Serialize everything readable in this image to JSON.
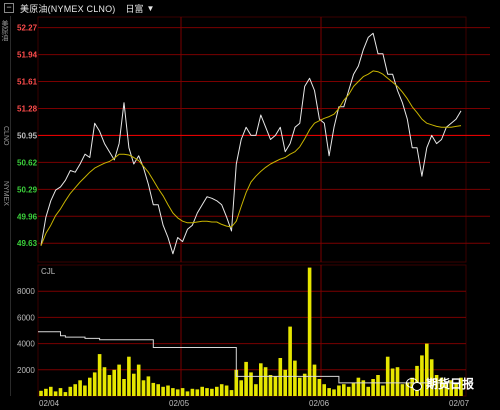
{
  "header": {
    "minus_label": "−",
    "title": "美原油(NYMEX CLNO)",
    "period": "日富",
    "chevron_icon": "chevron-down-icon"
  },
  "side_labels": [
    "美原油",
    "CLNO",
    "NYMEX"
  ],
  "colors": {
    "background": "#000000",
    "grid": "#7a0000",
    "price_line": "#e8e8e8",
    "ma_line": "#c8b400",
    "volume_bar": "#e6e600",
    "open_interest_line": "#d8d8d8",
    "axis_red": "#ff4c4c",
    "axis_green": "#3cd23c",
    "axis_gray": "#bdbdbd",
    "prev_close_line": "#e00000"
  },
  "watermark": {
    "text": "期货日报"
  },
  "chart_data": [
    {
      "type": "line",
      "panel": "price",
      "ylim": [
        49.4,
        52.4
      ],
      "y_ticks": [
        {
          "value": 52.27,
          "label": "52.27",
          "color": "red"
        },
        {
          "value": 51.94,
          "label": "51.94",
          "color": "red"
        },
        {
          "value": 51.61,
          "label": "51.61",
          "color": "red"
        },
        {
          "value": 51.28,
          "label": "51.28",
          "color": "red"
        },
        {
          "value": 50.95,
          "label": "50.95",
          "color": "gray"
        },
        {
          "value": 50.62,
          "label": "50.62",
          "color": "green"
        },
        {
          "value": 50.29,
          "label": "50.29",
          "color": "green"
        },
        {
          "value": 49.96,
          "label": "49.96",
          "color": "green"
        },
        {
          "value": 49.63,
          "label": "49.63",
          "color": "green"
        }
      ],
      "prev_close": 50.95,
      "x_labels": [
        "02/04",
        "02/05",
        "02/06",
        "02/07"
      ],
      "series": [
        {
          "role": "price",
          "values": [
            49.6,
            49.95,
            50.15,
            50.28,
            50.32,
            50.4,
            50.52,
            50.5,
            50.6,
            50.72,
            50.68,
            51.1,
            51.0,
            50.85,
            50.75,
            50.65,
            50.85,
            51.35,
            50.8,
            50.6,
            50.7,
            50.55,
            50.35,
            50.1,
            50.1,
            49.85,
            49.7,
            49.5,
            49.7,
            49.65,
            49.8,
            49.85,
            50.0,
            50.1,
            50.2,
            50.18,
            50.15,
            50.1,
            49.95,
            49.78,
            50.6,
            50.9,
            51.05,
            50.95,
            50.95,
            51.2,
            51.05,
            50.9,
            50.95,
            51.05,
            50.75,
            50.85,
            51.05,
            51.1,
            51.55,
            51.65,
            51.5,
            51.15,
            51.1,
            50.7,
            51.05,
            51.3,
            51.3,
            51.5,
            51.7,
            51.8,
            52.0,
            52.15,
            52.2,
            51.95,
            51.95,
            51.7,
            51.7,
            51.5,
            51.35,
            51.15,
            50.8,
            50.8,
            50.45,
            50.8,
            50.95,
            50.85,
            50.9,
            51.05,
            51.1,
            51.15,
            51.25
          ]
        },
        {
          "role": "moving_average",
          "values": [
            49.6,
            49.75,
            49.85,
            49.97,
            50.05,
            50.15,
            50.24,
            50.31,
            50.38,
            50.44,
            50.5,
            50.55,
            50.58,
            50.61,
            50.63,
            50.67,
            50.72,
            50.72,
            50.71,
            50.68,
            50.64,
            50.57,
            50.5,
            50.4,
            50.3,
            50.21,
            50.1,
            50.0,
            49.94,
            49.9,
            49.88,
            49.88,
            49.89,
            49.9,
            49.9,
            49.89,
            49.89,
            49.86,
            49.84,
            49.83,
            49.9,
            50.08,
            50.25,
            50.38,
            50.45,
            50.51,
            50.56,
            50.6,
            50.63,
            50.66,
            50.68,
            50.72,
            50.75,
            50.81,
            50.91,
            51.02,
            51.1,
            51.13,
            51.16,
            51.18,
            51.21,
            51.28,
            51.38,
            51.45,
            51.55,
            51.61,
            51.67,
            51.7,
            51.74,
            51.73,
            51.7,
            51.65,
            51.6,
            51.55,
            51.48,
            51.4,
            51.3,
            51.23,
            51.15,
            51.1,
            51.08,
            51.06,
            51.05,
            51.05,
            51.05,
            51.06,
            51.07
          ]
        }
      ]
    },
    {
      "type": "bar",
      "panel": "volume",
      "title": "CJL",
      "ylim": [
        0,
        10000
      ],
      "y_ticks": [
        {
          "value": 8000,
          "label": "8000"
        },
        {
          "value": 6000,
          "label": "6000"
        },
        {
          "value": 4000,
          "label": "4000"
        },
        {
          "value": 2000,
          "label": "2000"
        }
      ],
      "values": [
        400,
        550,
        700,
        350,
        600,
        300,
        700,
        900,
        1200,
        800,
        1400,
        1800,
        3200,
        2200,
        1600,
        2000,
        2400,
        1300,
        3000,
        1700,
        2400,
        1200,
        1500,
        1000,
        900,
        700,
        800,
        600,
        500,
        600,
        350,
        550,
        500,
        700,
        600,
        550,
        700,
        900,
        800,
        450,
        2000,
        1200,
        2600,
        1800,
        900,
        2500,
        2200,
        1600,
        1500,
        2900,
        2000,
        5300,
        2700,
        1400,
        1700,
        9800,
        2400,
        1300,
        900,
        600,
        500,
        800,
        900,
        700,
        1000,
        1400,
        1200,
        700,
        1300,
        1600,
        800,
        3000,
        2100,
        2200,
        900,
        1000,
        1400,
        2300,
        3100,
        4000,
        2800,
        1600,
        1400,
        900,
        1200,
        1000,
        1400
      ],
      "open_interest": [
        4900,
        4900,
        4900,
        4900,
        4600,
        4500,
        4500,
        4500,
        4500,
        4400,
        4400,
        4400,
        4300,
        4300,
        4300,
        4300,
        4300,
        4300,
        4300,
        4300,
        4300,
        4300,
        4300,
        3700,
        3700,
        3700,
        3700,
        3700,
        3700,
        3700,
        3700,
        3700,
        3700,
        3700,
        3700,
        3700,
        3700,
        3700,
        3700,
        3700,
        1500,
        1500,
        1500,
        1500,
        1500,
        1500,
        1500,
        1500,
        1500,
        1500,
        1500,
        1500,
        1500,
        1500,
        1500,
        1500,
        1500,
        1500,
        1500,
        1500,
        1500,
        1000,
        1000,
        1000,
        1000,
        1000,
        1000,
        1000,
        1000,
        1000,
        1000,
        1000,
        1000,
        1000,
        1000,
        1000,
        1000,
        1000,
        1000,
        1000,
        1000,
        1000,
        1000,
        1000,
        1000,
        1000,
        1000
      ]
    }
  ]
}
